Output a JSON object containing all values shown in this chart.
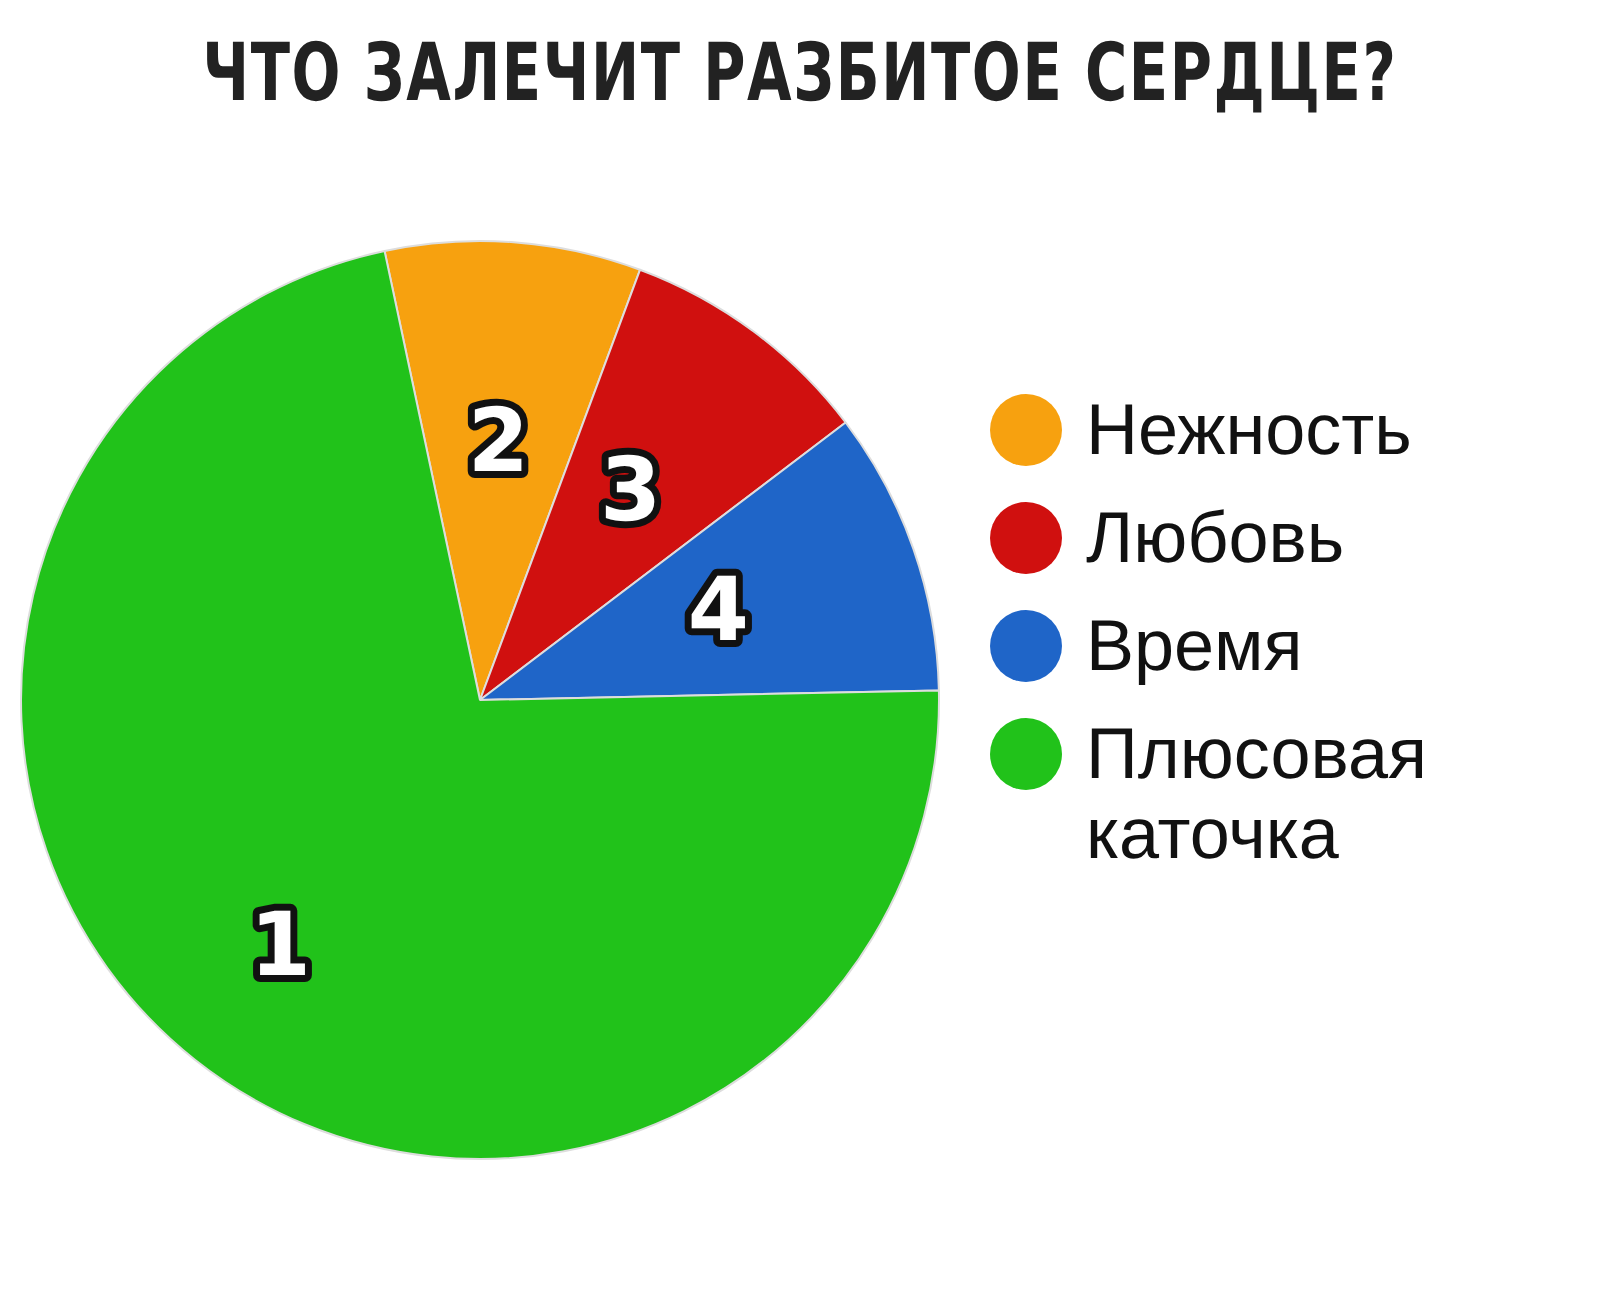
{
  "chart_data": {
    "type": "pie",
    "title": "ЧТО ЗАЛЕЧИТ РАЗБИТОЕ СЕРДЦЕ?",
    "categories": [
      "Нежность",
      "Любовь",
      "Время",
      "Плюсовая каточка"
    ],
    "values": [
      9,
      9,
      10,
      72
    ],
    "colors": [
      "#f7a10f",
      "#d0100f",
      "#1f65c8",
      "#21c21a"
    ],
    "annotations": [
      {
        "text": "1",
        "x": "Плюсовая каточка"
      },
      {
        "text": "2",
        "x": "Нежность"
      },
      {
        "text": "3",
        "x": "Любовь"
      },
      {
        "text": "4",
        "x": "Время"
      }
    ],
    "legend": "right"
  }
}
